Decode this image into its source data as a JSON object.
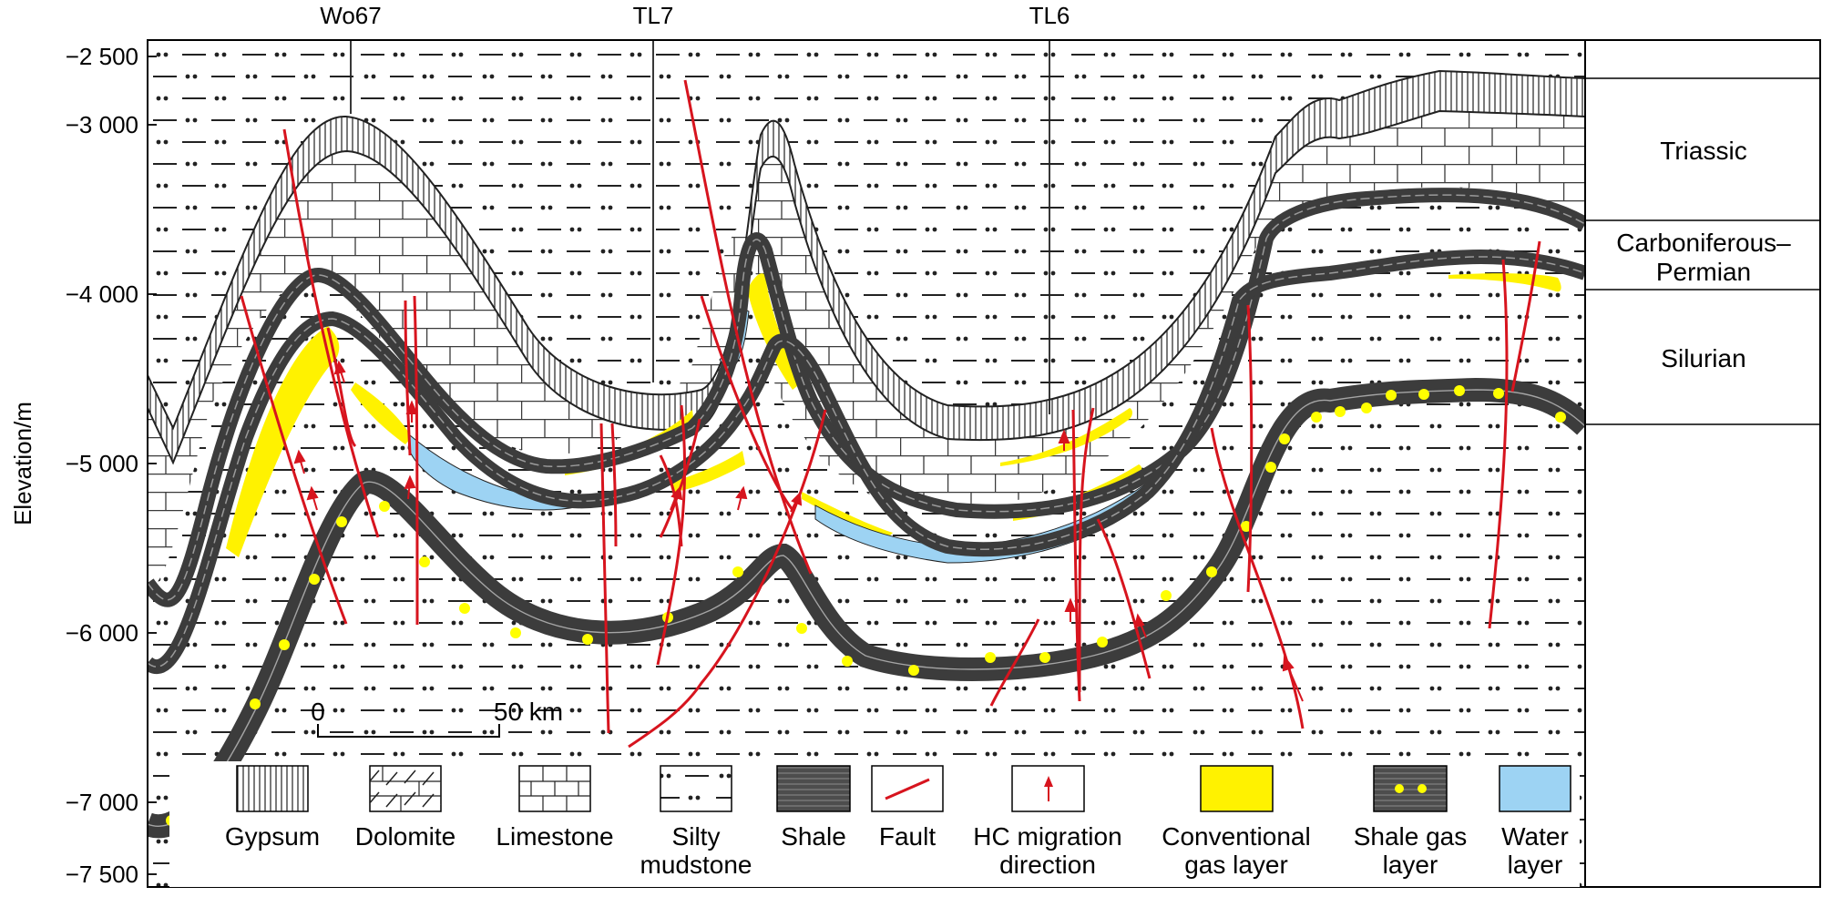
{
  "y_axis": {
    "label": "Elevation/m",
    "ticks": [
      "−2 500",
      "−3 000",
      "−4 000",
      "−5 000",
      "−6 000",
      "−7 000",
      "−7 500"
    ]
  },
  "wells": [
    "Wo67",
    "TL7",
    "TL6"
  ],
  "strata": [
    "Triassic",
    "Carboniferous–",
    "Permian",
    "Silurian"
  ],
  "scale_bar": {
    "start": "0",
    "end": "50 km"
  },
  "legend": [
    {
      "id": "gypsum",
      "line1": "Gypsum",
      "line2": ""
    },
    {
      "id": "dolomite",
      "line1": "Dolomite",
      "line2": ""
    },
    {
      "id": "limestone",
      "line1": "Limestone",
      "line2": ""
    },
    {
      "id": "silty-mudstone",
      "line1": "Silty",
      "line2": "mudstone"
    },
    {
      "id": "shale",
      "line1": "Shale",
      "line2": ""
    },
    {
      "id": "fault",
      "line1": "Fault",
      "line2": ""
    },
    {
      "id": "hc-migration",
      "line1": "HC migration",
      "line2": "direction"
    },
    {
      "id": "conventional-gas",
      "line1": "Conventional",
      "line2": "gas layer"
    },
    {
      "id": "shale-gas",
      "line1": "Shale gas",
      "line2": "layer"
    },
    {
      "id": "water",
      "line1": "Water",
      "line2": "layer"
    }
  ],
  "colors": {
    "fault": "#d7141e",
    "conventional_gas": "#fff200",
    "water": "#9dd3f3",
    "shale": "#4d4d4d",
    "shale_gas_dot": "#ffff00"
  }
}
